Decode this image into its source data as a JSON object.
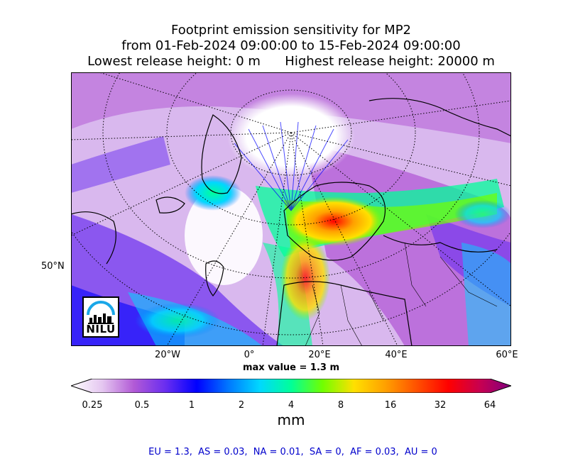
{
  "title": {
    "line1": "Footprint emission sensitivity for MP2",
    "line2": "from 01-Feb-2024 09:00:00 to 15-Feb-2024 09:00:00",
    "line3": "Lowest release height: 0 m      Highest release height: 20000 m"
  },
  "map": {
    "lat_labels": [
      "50°N"
    ],
    "lon_labels": [
      "20°W",
      "0°",
      "20°E",
      "40°E",
      "60°E"
    ],
    "max_value_text": "max value = 1.3 m",
    "logo_text": "NILU"
  },
  "colorbar": {
    "tick_labels": [
      "0.25",
      "0.5",
      "1",
      "2",
      "4",
      "8",
      "16",
      "32",
      "64"
    ],
    "unit": "mm",
    "colors": [
      "#ffffff",
      "#e4c6f0",
      "#b25ad6",
      "#6a2ef0",
      "#0000ff",
      "#0077ff",
      "#00d8ff",
      "#00ff99",
      "#70ff00",
      "#ffe000",
      "#ffa000",
      "#ff5000",
      "#ff0000",
      "#c80050",
      "#800080"
    ]
  },
  "footer": {
    "text": "EU = 1.3,  AS = 0.03,  NA = 0.01,  SA = 0,  AF = 0.03,  AU = 0"
  }
}
